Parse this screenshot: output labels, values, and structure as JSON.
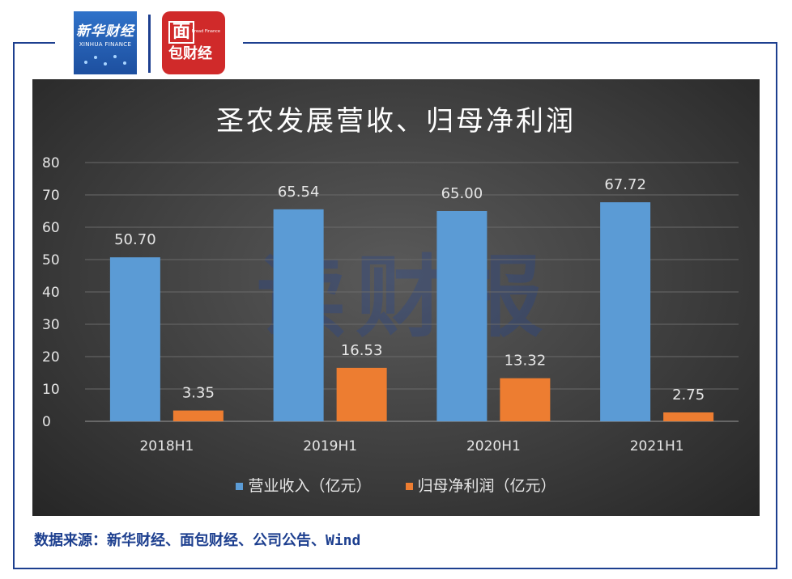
{
  "logos": {
    "xinhua_cn": "新华财经",
    "xinhua_en": "XINHUA FINANCE",
    "mianbao_top": "面",
    "mianbao_bottom": "包财经",
    "mianbao_en": "Bread Finance"
  },
  "watermark": "读财报",
  "source_text": "数据来源：新华财经、面包财经、公司公告、Wind",
  "colors": {
    "revenue": "#5b9bd5",
    "profit": "#ed7d31",
    "frame": "#1d3f8f",
    "axis_text": "#e6e6e6"
  },
  "chart_data": {
    "type": "bar",
    "title": "圣农发展营收、归母净利润",
    "categories": [
      "2018H1",
      "2019H1",
      "2020H1",
      "2021H1"
    ],
    "series": [
      {
        "name": "营业收入（亿元）",
        "values": [
          50.7,
          65.54,
          65.0,
          67.72
        ],
        "labels": [
          "50.70",
          "65.54",
          "65.00",
          "67.72"
        ]
      },
      {
        "name": "归母净利润（亿元）",
        "values": [
          3.35,
          16.53,
          13.32,
          2.75
        ],
        "labels": [
          "3.35",
          "16.53",
          "13.32",
          "2.75"
        ]
      }
    ],
    "ylim": [
      0,
      80
    ],
    "yticks": [
      0,
      10,
      20,
      30,
      40,
      50,
      60,
      70,
      80
    ],
    "grid": true,
    "legend_position": "bottom"
  }
}
